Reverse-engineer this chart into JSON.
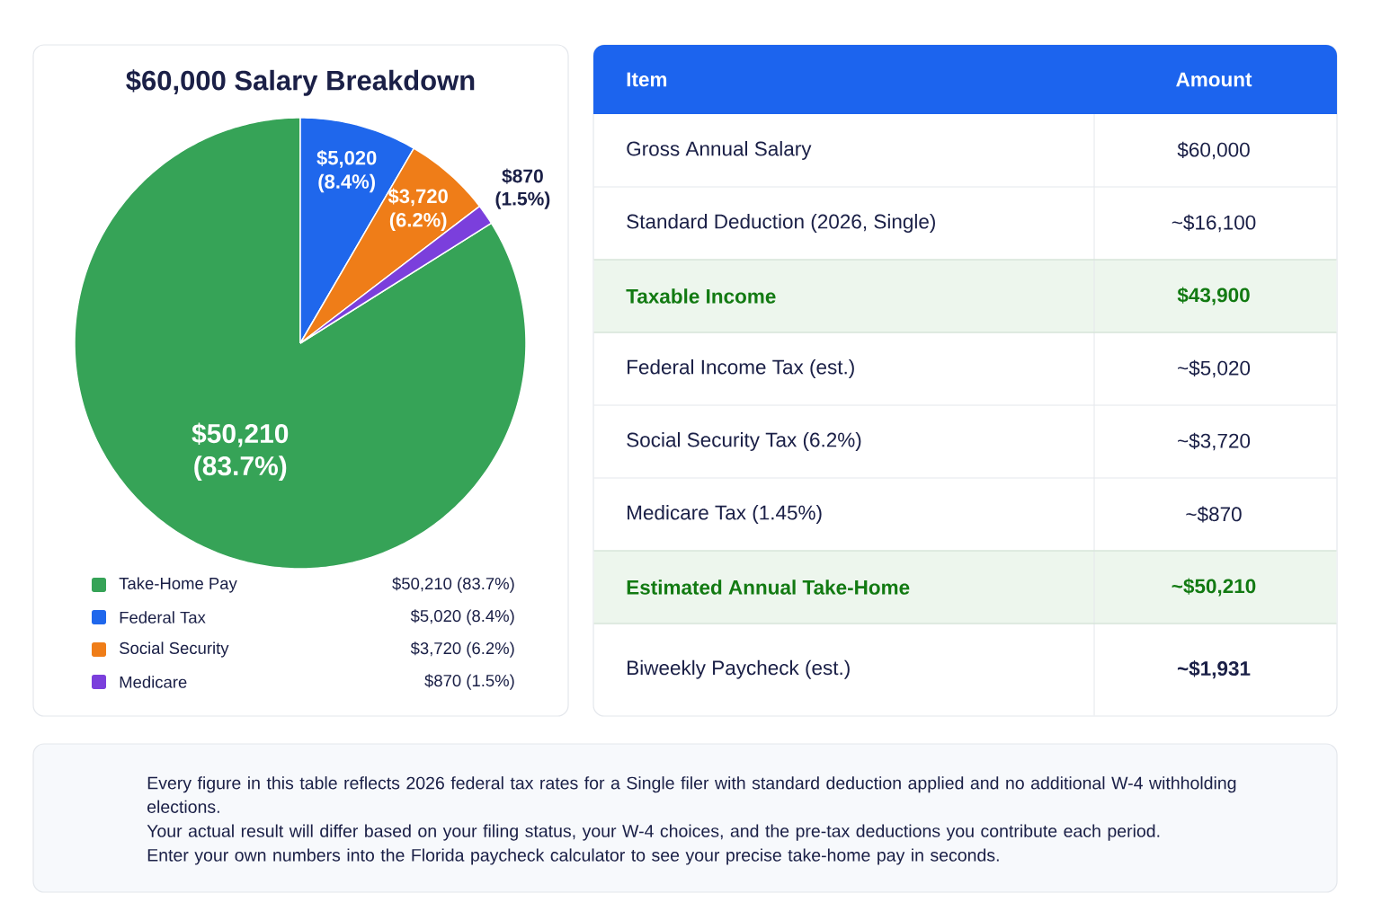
{
  "chart_data": [
    {
      "type": "pie",
      "title": "$60,000 Salary Breakdown",
      "categories": [
        "Take-Home Pay",
        "Federal Tax",
        "Social Security",
        "Medicare"
      ],
      "values": [
        50210,
        5020,
        3720,
        870
      ],
      "colors": [
        "#36a357",
        "#1f67ec",
        "#ef7d18",
        "#7b3fdc"
      ],
      "value_labels": [
        "$50,210 (83.7%)",
        "$5,020 (8.4%)",
        "$3,720 (6.2%)",
        "$870 (1.5%)"
      ],
      "legend": "bottom"
    },
    {
      "type": "other",
      "annotations": [
        "Item",
        "Amount"
      ],
      "categories": [
        "Gross Annual Salary",
        "Standard Deduction (2026, Single)",
        "Taxable Income",
        "Federal Income Tax (est.)",
        "Social Security Tax (6.2%)",
        "Medicare Tax (1.45%)",
        "Estimated Annual Take-Home",
        "Biweekly Paycheck (est.)"
      ],
      "value_labels": [
        "$60,000",
        "~$16,100",
        "$43,900",
        "~$5,020",
        "~$3,720",
        "~$870",
        "~$50,210",
        "**~$1,931**"
      ],
      "colors": [
        null,
        null,
        "#edf6ed",
        null,
        null,
        null,
        "#edf6ed",
        null
      ]
    },
    {
      "type": "other",
      "annotations": [
        "Every figure in this table reflects 2026 federal tax rates for a Single filer with standard deduction applied and no additional W-4 withholding elections.",
        "Your actual result will differ based on your filing status, your W-4 choices, and the pre-tax deductions you contribute each period.",
        "Enter your own numbers into the Florida paycheck calculator to see your precise take-home pay in seconds."
      ]
    }
  ]
}
